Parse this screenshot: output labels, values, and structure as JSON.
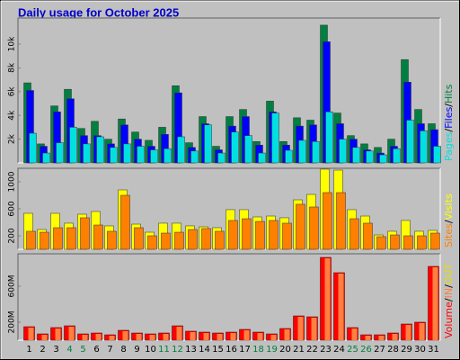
{
  "chart_data": [
    {
      "type": "bar",
      "title": "Daily usage for October 2025",
      "ylim": [
        0,
        12200
      ],
      "yticks": [
        {
          "value": 2000,
          "label": "2k"
        },
        {
          "value": 4000,
          "label": "4k"
        },
        {
          "value": 6000,
          "label": "6k"
        },
        {
          "value": 8000,
          "label": "8k"
        },
        {
          "value": 10000,
          "label": "10k"
        }
      ],
      "legend_separator": "/",
      "series": [
        {
          "name": "Hits",
          "color": "#008040",
          "values": [
            6740,
            1600,
            4800,
            6200,
            2900,
            3500,
            2000,
            3700,
            2600,
            1900,
            3000,
            6500,
            1700,
            3900,
            1400,
            3900,
            4500,
            1800,
            5200,
            1800,
            3800,
            3600,
            11600,
            4200,
            2300,
            1600,
            1300,
            2000,
            8700,
            4500,
            3300
          ]
        },
        {
          "name": "Files",
          "color": "#0000ff",
          "values": [
            6100,
            1400,
            4300,
            5400,
            2300,
            2300,
            1600,
            3200,
            2000,
            1400,
            2400,
            5900,
            1300,
            3300,
            1100,
            3100,
            3900,
            1500,
            4300,
            1500,
            3100,
            3200,
            10200,
            3300,
            2000,
            1100,
            830,
            1400,
            6800,
            3300,
            2800
          ]
        },
        {
          "name": "Pages",
          "color": "#00e0e0",
          "values": [
            2500,
            830,
            1700,
            3000,
            1600,
            2200,
            1300,
            1600,
            1400,
            1100,
            1200,
            2200,
            1000,
            3200,
            830,
            2600,
            2300,
            830,
            4200,
            1060,
            1900,
            1800,
            4300,
            2000,
            1300,
            1000,
            680,
            1200,
            3600,
            2700,
            1400
          ]
        }
      ]
    },
    {
      "type": "bar",
      "ylim": [
        0,
        1200
      ],
      "yticks": [
        200,
        600,
        1000
      ],
      "legend_separator": "/",
      "series": [
        {
          "name": "Visits",
          "color": "#ffff00",
          "values": [
            533,
            293,
            533,
            387,
            520,
            560,
            347,
            880,
            373,
            253,
            387,
            387,
            347,
            333,
            320,
            587,
            587,
            480,
            493,
            467,
            733,
            813,
            1187,
            1173,
            587,
            493,
            213,
            267,
            427,
            267,
            280
          ]
        },
        {
          "name": "Sites",
          "color": "#ff8000",
          "values": [
            267,
            253,
            320,
            320,
            467,
            360,
            267,
            800,
            320,
            200,
            240,
            253,
            293,
            307,
            267,
            427,
            453,
            413,
            427,
            387,
            667,
            627,
            840,
            840,
            453,
            387,
            187,
            213,
            200,
            200,
            240
          ]
        }
      ]
    },
    {
      "type": "bar",
      "ylim": [
        0,
        960
      ],
      "yticks": [
        {
          "value": 200,
          "label": "200M"
        },
        {
          "value": 600,
          "label": "600M"
        }
      ],
      "categories": [
        "1",
        "2",
        "3",
        "4",
        "5",
        "6",
        "7",
        "8",
        "9",
        "10",
        "11",
        "12",
        "13",
        "14",
        "15",
        "16",
        "17",
        "18",
        "19",
        "20",
        "21",
        "22",
        "23",
        "24",
        "25",
        "26",
        "27",
        "28",
        "29",
        "30",
        "31"
      ],
      "highlight_categories": [
        3,
        4,
        10,
        11,
        17,
        18,
        24,
        25
      ],
      "highlight_color": "#008040",
      "legend": [
        {
          "text": "Volume",
          "color": "#ff0000"
        },
        {
          "text": "IN",
          "color": "#ff8040"
        },
        {
          "text": "OUT",
          "color": "#e0e000"
        }
      ],
      "legend_separator": "/",
      "series": [
        {
          "name": "Volume",
          "color": "#ff0000",
          "inner_color": "#ff8040",
          "values": [
            150,
            70,
            140,
            160,
            70,
            80,
            60,
            110,
            80,
            70,
            80,
            160,
            100,
            90,
            80,
            90,
            120,
            90,
            70,
            130,
            270,
            260,
            920,
            750,
            140,
            60,
            60,
            80,
            180,
            200,
            820
          ]
        }
      ]
    }
  ]
}
